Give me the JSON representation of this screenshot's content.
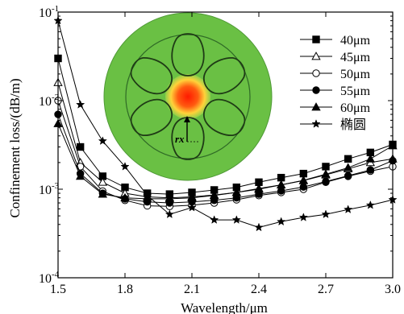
{
  "chart_data": {
    "type": "line",
    "xlabel": "Wavelength/μm",
    "ylabel": "Confinement loss/(dB/m)",
    "xlim": [
      1.5,
      3.0
    ],
    "ylim": [
      0.0001,
      0.1
    ],
    "y_scale": "log",
    "x_ticks": [
      1.5,
      1.8,
      2.1,
      2.4,
      2.7,
      3.0
    ],
    "x_tick_labels": [
      "1.5",
      "1.8",
      "2.1",
      "2.4",
      "2.7",
      "3.0"
    ],
    "y_tick_labels": [
      {
        "base": "10",
        "exp": "-1"
      },
      {
        "base": "10",
        "exp": "-2"
      },
      {
        "base": "10",
        "exp": "-3"
      },
      {
        "base": "10",
        "exp": "-4"
      }
    ],
    "legend_position": "top-right",
    "grid": false,
    "inset_label": "rx",
    "series": [
      {
        "name": "40μm",
        "marker": "square",
        "x": [
          1.5,
          1.6,
          1.7,
          1.8,
          1.9,
          2.0,
          2.1,
          2.2,
          2.3,
          2.4,
          2.5,
          2.6,
          2.7,
          2.8,
          2.9,
          3.0
        ],
        "y": [
          0.03,
          0.003,
          0.0014,
          0.00105,
          0.0009,
          0.00088,
          0.00092,
          0.00098,
          0.00105,
          0.0012,
          0.00135,
          0.0015,
          0.0018,
          0.0022,
          0.0026,
          0.0032
        ]
      },
      {
        "name": "45μm",
        "marker": "triangle-open",
        "x": [
          1.5,
          1.6,
          1.7,
          1.8,
          1.9,
          2.0,
          2.1,
          2.2,
          2.3,
          2.4,
          2.5,
          2.6,
          2.7,
          2.8,
          2.9,
          3.0
        ],
        "y": [
          0.016,
          0.002,
          0.0012,
          0.0009,
          0.00082,
          0.0008,
          0.00082,
          0.00086,
          0.00092,
          0.001,
          0.00112,
          0.00125,
          0.00145,
          0.0017,
          0.002,
          0.0022
        ]
      },
      {
        "name": "50μm",
        "marker": "circle-open",
        "x": [
          1.5,
          1.6,
          1.7,
          1.8,
          1.9,
          2.0,
          2.1,
          2.2,
          2.3,
          2.4,
          2.5,
          2.6,
          2.7,
          2.8,
          2.9,
          3.0
        ],
        "y": [
          0.01,
          0.0018,
          0.00095,
          0.00075,
          0.00065,
          0.00064,
          0.00066,
          0.0007,
          0.00076,
          0.00085,
          0.00092,
          0.001,
          0.0012,
          0.0014,
          0.0016,
          0.0018
        ]
      },
      {
        "name": "55μm",
        "marker": "circle",
        "x": [
          1.5,
          1.6,
          1.7,
          1.8,
          1.9,
          2.0,
          2.1,
          2.2,
          2.3,
          2.4,
          2.5,
          2.6,
          2.7,
          2.8,
          2.9,
          3.0
        ],
        "y": [
          0.007,
          0.0015,
          0.0009,
          0.00078,
          0.00072,
          0.0007,
          0.00072,
          0.00075,
          0.0008,
          0.00088,
          0.00096,
          0.00106,
          0.00122,
          0.00142,
          0.00165,
          0.0021
        ]
      },
      {
        "name": "60μm",
        "marker": "triangle",
        "x": [
          1.5,
          1.6,
          1.7,
          1.8,
          1.9,
          2.0,
          2.1,
          2.2,
          2.3,
          2.4,
          2.5,
          2.6,
          2.7,
          2.8,
          2.9,
          3.0
        ],
        "y": [
          0.0055,
          0.0014,
          0.00088,
          0.0008,
          0.00078,
          0.00078,
          0.0008,
          0.00085,
          0.00092,
          0.00102,
          0.00112,
          0.00126,
          0.00148,
          0.00175,
          0.0022,
          0.0031
        ]
      },
      {
        "name": "椭圆",
        "marker": "star",
        "x": [
          1.5,
          1.6,
          1.7,
          1.8,
          1.9,
          2.0,
          2.1,
          2.2,
          2.3,
          2.4,
          2.5,
          2.6,
          2.7,
          2.8,
          2.9,
          3.0
        ],
        "y": [
          0.08,
          0.009,
          0.0035,
          0.0018,
          0.00085,
          0.00052,
          0.00062,
          0.00045,
          0.00045,
          0.00037,
          0.00043,
          0.00048,
          0.00052,
          0.00059,
          0.00066,
          0.00076
        ]
      }
    ]
  }
}
